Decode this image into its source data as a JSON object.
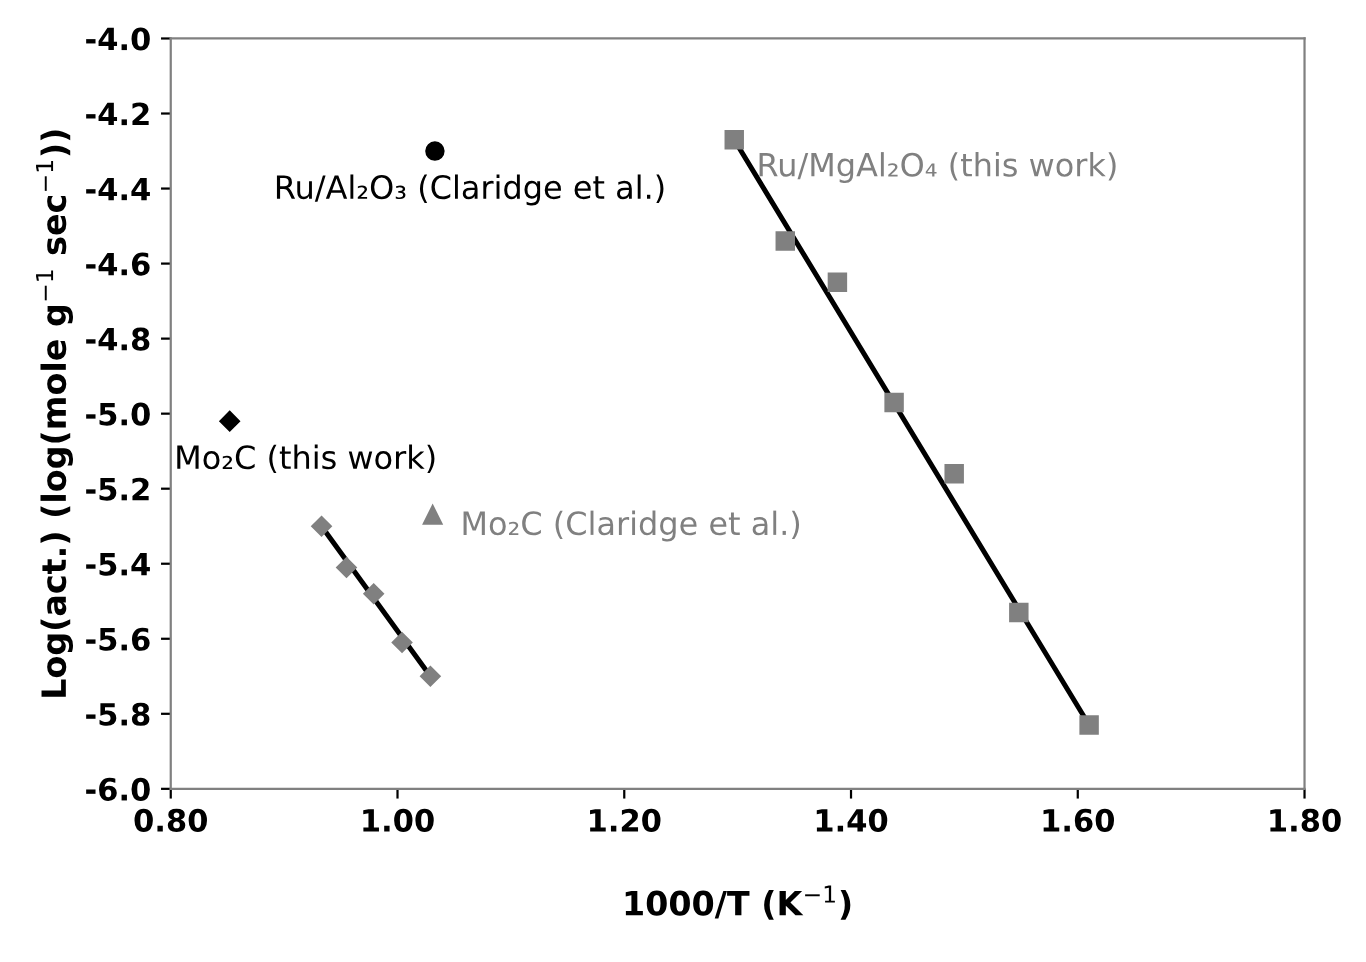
{
  "chart_data": {
    "type": "scatter",
    "xlabel": "1000/T (K$^{−1}$)",
    "ylabel": "Log(act.) (log(mole g$^{−1}$ sec$^{−1}$))",
    "series": [
      {
        "name": "Ru/Al₂O₃ (Claridge et al.)",
        "color": "#000000",
        "marker": "circle",
        "x": [
          1.033
        ],
        "values": [
          -4.3
        ]
      },
      {
        "name": "Mo₂C (this work)",
        "color": "#000000",
        "marker": "diamond",
        "x": [
          0.852
        ],
        "values": [
          -5.02
        ]
      },
      {
        "name": "Mo₂C (Claridge et al.)",
        "color": "#808080",
        "marker": "triangle",
        "x": [
          1.031
        ],
        "values": [
          -5.27
        ]
      },
      {
        "name": "Ru/MgAl₂O₄ (this work)",
        "color": "#808080",
        "marker": "square",
        "x": [
          1.297,
          1.342,
          1.388,
          1.438,
          1.491,
          1.548,
          1.61
        ],
        "values": [
          -4.27,
          -4.54,
          -4.65,
          -4.97,
          -5.16,
          -5.53,
          -5.83
        ]
      },
      {
        "color": "#808080",
        "marker": "diamond",
        "x": [
          0.933,
          0.955,
          0.979,
          1.004,
          1.029
        ],
        "values": [
          -5.3,
          -5.41,
          -5.48,
          -5.61,
          -5.7
        ]
      },
      {
        "type": "line",
        "color": "#000000",
        "marker": "none",
        "x": [
          1.297,
          1.61
        ],
        "values": [
          -4.27,
          -5.83
        ]
      },
      {
        "type": "line",
        "color": "#000000",
        "marker": "none",
        "x": [
          0.933,
          1.029
        ],
        "values": [
          -5.3,
          -5.7
        ]
      }
    ],
    "xlim": [
      0.8,
      1.8
    ],
    "ylim": [
      -6.0,
      -4.0
    ],
    "xticks": [
      {
        "value": 0.8,
        "label": "0.80"
      },
      {
        "value": 1.0,
        "label": "1.00"
      },
      {
        "value": 1.2,
        "label": "1.20"
      },
      {
        "value": 1.4,
        "label": "1.40"
      },
      {
        "value": 1.6,
        "label": "1.60"
      },
      {
        "value": 1.8,
        "label": "1.80"
      }
    ],
    "yticks": [
      {
        "value": -6.0,
        "label": "-6.0"
      },
      {
        "value": -5.8,
        "label": "-5.8"
      },
      {
        "value": -5.6,
        "label": "-5.6"
      },
      {
        "value": -5.4,
        "label": "-5.4"
      },
      {
        "value": -5.2,
        "label": "-5.2"
      },
      {
        "value": -5.0,
        "label": "-5.0"
      },
      {
        "value": -4.8,
        "label": "-4.8"
      },
      {
        "value": -4.6,
        "label": "-4.6"
      },
      {
        "value": -4.4,
        "label": "-4.4"
      },
      {
        "value": -4.2,
        "label": "-4.2"
      },
      {
        "value": -4.0,
        "label": "-4.0"
      }
    ],
    "grid": false,
    "legend": false
  }
}
